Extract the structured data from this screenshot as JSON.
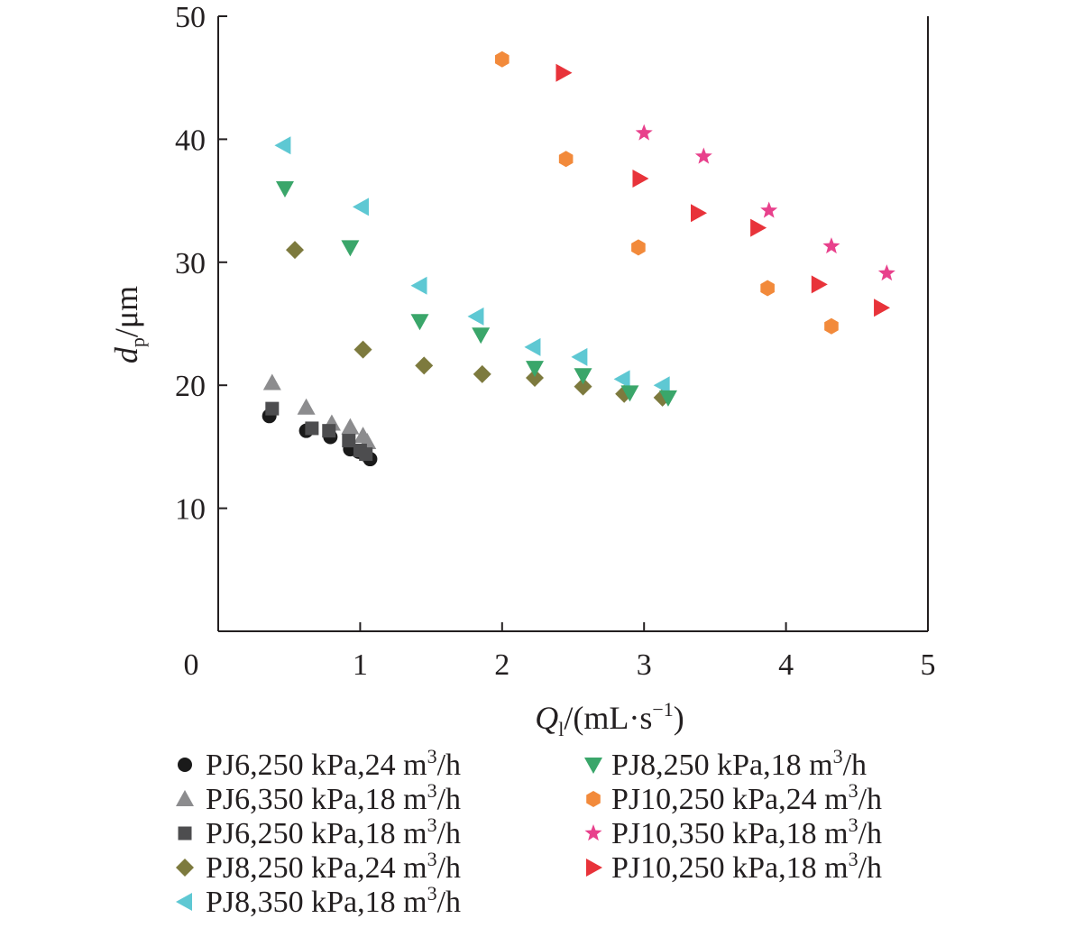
{
  "chart_data": {
    "type": "scatter",
    "title": "",
    "xlabel": {
      "main": "Q",
      "sub": "l",
      "rest": "/(mL·s",
      "sup": "−1",
      "end": ")"
    },
    "ylabel": {
      "main": "d",
      "sub": "p",
      "rest": "/μm"
    },
    "xlim": [
      0,
      5
    ],
    "ylim": [
      0,
      50
    ],
    "xticks": [
      0,
      1,
      2,
      3,
      4,
      5
    ],
    "yticks": [
      10,
      20,
      30,
      40,
      50
    ],
    "grid": false,
    "legend_position": "bottom",
    "series": [
      {
        "name": "PJ6,250 kPa,24 m³/h",
        "marker": "circle",
        "color": "#1a1a1a",
        "x": [
          0.36,
          0.62,
          0.79,
          0.93,
          0.99,
          1.03,
          1.07
        ],
        "y": [
          17.5,
          16.3,
          15.8,
          14.8,
          14.6,
          14.4,
          14.0
        ]
      },
      {
        "name": "PJ6,350 kPa,18 m³/h",
        "marker": "triangle-up",
        "color": "#8c8c8e",
        "x": [
          0.38,
          0.62,
          0.8,
          0.93,
          1.02,
          1.05
        ],
        "y": [
          20.2,
          18.2,
          16.9,
          16.6,
          15.9,
          15.4
        ]
      },
      {
        "name": "PJ6,250 kPa,18 m³/h",
        "marker": "square",
        "color": "#4d4d4f",
        "x": [
          0.38,
          0.66,
          0.78,
          0.92,
          1.0,
          1.04
        ],
        "y": [
          18.1,
          16.5,
          16.3,
          15.5,
          14.7,
          14.4
        ]
      },
      {
        "name": "PJ8,250 kPa,24 m³/h",
        "marker": "diamond",
        "color": "#7d7a3e",
        "x": [
          0.54,
          1.02,
          1.45,
          1.86,
          2.23,
          2.57,
          2.86,
          3.13
        ],
        "y": [
          31.0,
          22.9,
          21.6,
          20.9,
          20.6,
          19.9,
          19.3,
          19.0
        ]
      },
      {
        "name": "PJ8,350 kPa,18 m³/h",
        "marker": "triangle-left",
        "color": "#5ec8d3",
        "x": [
          0.46,
          1.01,
          1.42,
          1.82,
          2.22,
          2.55,
          2.85,
          3.13
        ],
        "y": [
          39.5,
          34.5,
          28.1,
          25.6,
          23.1,
          22.3,
          20.5,
          20.0
        ]
      },
      {
        "name": "PJ8,250 kPa,18 m³/h",
        "marker": "triangle-down",
        "color": "#3aa66a",
        "x": [
          0.47,
          0.93,
          1.42,
          1.85,
          2.23,
          2.57,
          2.9,
          3.17
        ],
        "y": [
          36.0,
          31.2,
          25.2,
          24.1,
          21.4,
          20.8,
          19.4,
          19.0
        ]
      },
      {
        "name": "PJ10,250 kPa,24 m³/h",
        "marker": "hexagon",
        "color": "#f28a3b",
        "x": [
          2.0,
          2.45,
          2.96,
          3.87,
          4.32
        ],
        "y": [
          46.5,
          38.4,
          31.2,
          27.9,
          24.8
        ]
      },
      {
        "name": "PJ10,350 kPa,18 m³/h",
        "marker": "star",
        "color": "#e8418c",
        "x": [
          3.0,
          3.42,
          3.88,
          4.32,
          4.71
        ],
        "y": [
          40.5,
          38.6,
          34.2,
          31.3,
          29.1
        ]
      },
      {
        "name": "PJ10,250 kPa,18 m³/h",
        "marker": "triangle-right",
        "color": "#e8333a",
        "x": [
          2.43,
          2.97,
          3.38,
          3.8,
          4.23,
          4.67
        ],
        "y": [
          45.4,
          36.8,
          34.0,
          32.8,
          28.2,
          26.3
        ]
      }
    ]
  }
}
